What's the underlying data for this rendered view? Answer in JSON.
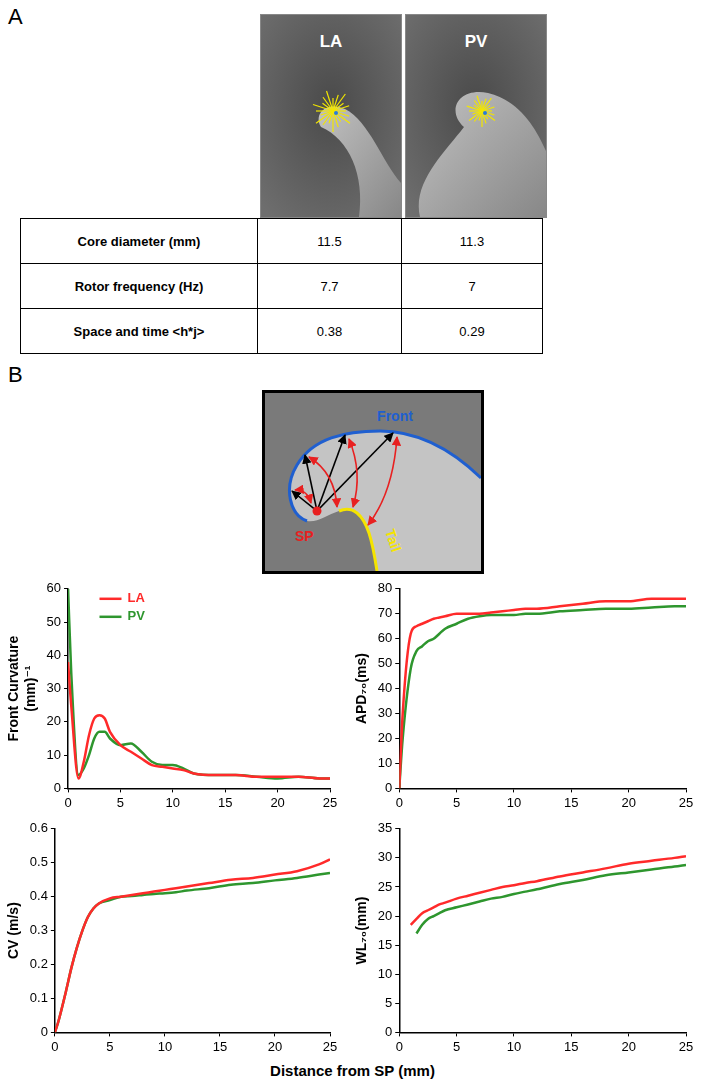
{
  "panels": {
    "A": {
      "letter": "A",
      "columns": [
        "LA",
        "PV"
      ],
      "table": {
        "rows": [
          [
            "Core diameter (mm)",
            11.5,
            11.3
          ],
          [
            "Rotor frequency (Hz)",
            7.7,
            7
          ],
          [
            "Space and time <h*j>",
            0.38,
            0.29
          ]
        ]
      }
    },
    "B": {
      "letter": "B",
      "diagram": {
        "front": "Front",
        "tail": "Tail",
        "sp": "SP"
      },
      "x_label": "Distance from SP (mm)"
    }
  },
  "chart_data": [
    {
      "type": "line",
      "y_label": "Front Curvature (mm)⁻¹",
      "x": [
        0,
        0.3,
        1,
        1.5,
        2,
        2.5,
        3,
        3.5,
        4,
        5,
        6,
        7,
        8,
        9,
        10,
        11,
        12,
        14,
        16,
        18,
        20,
        22,
        24,
        25
      ],
      "series": [
        {
          "name": "LA",
          "color": "#ff2a2a",
          "values": [
            38,
            25,
            3,
            8,
            16,
            21,
            22,
            21,
            17,
            13,
            11,
            9,
            7,
            6.5,
            6,
            5.5,
            4.5,
            4,
            4,
            3.5,
            3.5,
            3.5,
            3,
            3
          ]
        },
        {
          "name": "PV",
          "color": "#2e962e",
          "values": [
            60,
            35,
            4,
            6,
            10,
            15,
            17,
            17,
            15,
            13,
            13.5,
            11,
            8,
            7,
            7,
            6,
            4.5,
            4,
            4,
            3.5,
            3,
            3.5,
            3,
            3
          ]
        }
      ],
      "xlim": [
        0,
        25
      ],
      "xticks": [
        0,
        5,
        10,
        15,
        20,
        25
      ],
      "ylim": [
        0,
        60
      ],
      "yticks": [
        0,
        10,
        20,
        30,
        40,
        50,
        60
      ],
      "grid": false,
      "legend": "upper left"
    },
    {
      "type": "line",
      "y_label": "APD₇₀(ms)",
      "x": [
        0,
        0.3,
        1,
        1.5,
        2,
        2.5,
        3,
        3.5,
        4,
        5,
        6,
        7,
        8,
        9,
        10,
        11,
        12,
        14,
        16,
        18,
        20,
        22,
        24,
        25
      ],
      "series": [
        {
          "name": "LA",
          "color": "#ff2a2a",
          "values": [
            0,
            30,
            62,
            65,
            66,
            67,
            68,
            68.5,
            69,
            70,
            70,
            70,
            70.5,
            71,
            71.5,
            72,
            72,
            73,
            74,
            75,
            75,
            76,
            76,
            76
          ]
        },
        {
          "name": "PV",
          "color": "#2e962e",
          "values": [
            0,
            20,
            48,
            55,
            57,
            59,
            60,
            62,
            64,
            66,
            68,
            69,
            69.5,
            69.5,
            69.5,
            70,
            70,
            71,
            71.5,
            72,
            72,
            72.5,
            73,
            73
          ]
        }
      ],
      "xlim": [
        0,
        25
      ],
      "xticks": [
        0,
        5,
        10,
        15,
        20,
        25
      ],
      "ylim": [
        0,
        80
      ],
      "yticks": [
        0,
        10,
        20,
        30,
        40,
        50,
        60,
        70,
        80
      ],
      "grid": false
    },
    {
      "type": "line",
      "y_label": "CV (m/s)",
      "x": [
        0,
        0.3,
        1,
        1.5,
        2,
        2.5,
        3,
        3.5,
        4,
        5,
        6,
        7,
        8,
        9,
        10,
        11,
        12,
        14,
        16,
        18,
        20,
        22,
        24,
        25
      ],
      "series": [
        {
          "name": "LA",
          "color": "#ff2a2a",
          "values": [
            0,
            0.03,
            0.12,
            0.19,
            0.25,
            0.3,
            0.34,
            0.365,
            0.38,
            0.395,
            0.4,
            0.405,
            0.41,
            0.415,
            0.42,
            0.425,
            0.43,
            0.44,
            0.45,
            0.455,
            0.465,
            0.475,
            0.495,
            0.51
          ]
        },
        {
          "name": "PV",
          "color": "#2e962e",
          "values": [
            0,
            0.03,
            0.12,
            0.19,
            0.25,
            0.3,
            0.34,
            0.365,
            0.38,
            0.39,
            0.4,
            0.402,
            0.405,
            0.408,
            0.41,
            0.413,
            0.418,
            0.425,
            0.435,
            0.44,
            0.448,
            0.455,
            0.465,
            0.47
          ]
        }
      ],
      "xlim": [
        0,
        25
      ],
      "xticks": [
        0,
        5,
        10,
        15,
        20,
        25
      ],
      "ylim": [
        0,
        0.6
      ],
      "yticks": [
        0,
        0.1,
        0.2,
        0.3,
        0.4,
        0.5,
        0.6
      ],
      "grid": false
    },
    {
      "type": "line",
      "y_label": "WL₇₀(mm)",
      "x": [
        0,
        0.3,
        1,
        1.5,
        2,
        2.5,
        3,
        3.5,
        4,
        5,
        6,
        7,
        8,
        9,
        10,
        11,
        12,
        14,
        16,
        18,
        20,
        22,
        24,
        25
      ],
      "series": [
        {
          "name": "LA",
          "color": "#ff2a2a",
          "values": [
            null,
            null,
            18.5,
            19.5,
            20.5,
            21,
            21.5,
            22,
            22.3,
            23,
            23.5,
            24,
            24.5,
            25,
            25.3,
            25.7,
            26,
            26.8,
            27.5,
            28.2,
            29,
            29.5,
            30,
            30.3
          ]
        },
        {
          "name": "PV",
          "color": "#2e962e",
          "values": [
            null,
            null,
            null,
            17,
            18.5,
            19.5,
            20,
            20.5,
            21,
            21.5,
            22,
            22.5,
            23,
            23.3,
            23.8,
            24.2,
            24.6,
            25.5,
            26.2,
            27,
            27.5,
            28,
            28.5,
            28.8
          ]
        }
      ],
      "xlim": [
        0,
        25
      ],
      "xticks": [
        0,
        5,
        10,
        15,
        20,
        25
      ],
      "ylim": [
        0,
        35
      ],
      "yticks": [
        0,
        5,
        10,
        15,
        20,
        25,
        30,
        35
      ],
      "grid": false
    }
  ]
}
